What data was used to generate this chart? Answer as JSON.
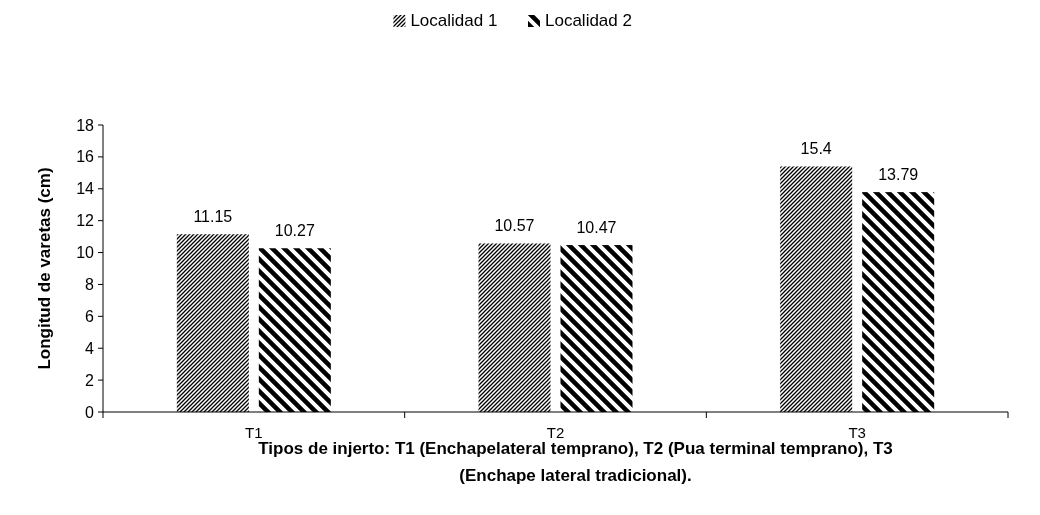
{
  "chart_data": {
    "type": "bar",
    "xlabel": "Tipos de injerto: T1 (Enchapelateral temprano), T2 (Pua terminal temprano), T3 (Enchape lateral tradicional).",
    "ylabel": "Longitud de varetas (cm)",
    "categories": [
      "T1",
      "T2",
      "T3"
    ],
    "series": [
      {
        "name": "Localidad 1",
        "color": "#000000",
        "values": [
          11.15,
          10.57,
          15.4
        ]
      },
      {
        "name": "Localidad 2",
        "color": "#000000",
        "values": [
          10.27,
          10.47,
          13.79
        ]
      }
    ],
    "ylim": [
      0,
      18
    ],
    "yticks": [
      0,
      2,
      4,
      6,
      8,
      10,
      12,
      14,
      16,
      18
    ],
    "grid": false,
    "legend": "top",
    "data_labels": true
  }
}
